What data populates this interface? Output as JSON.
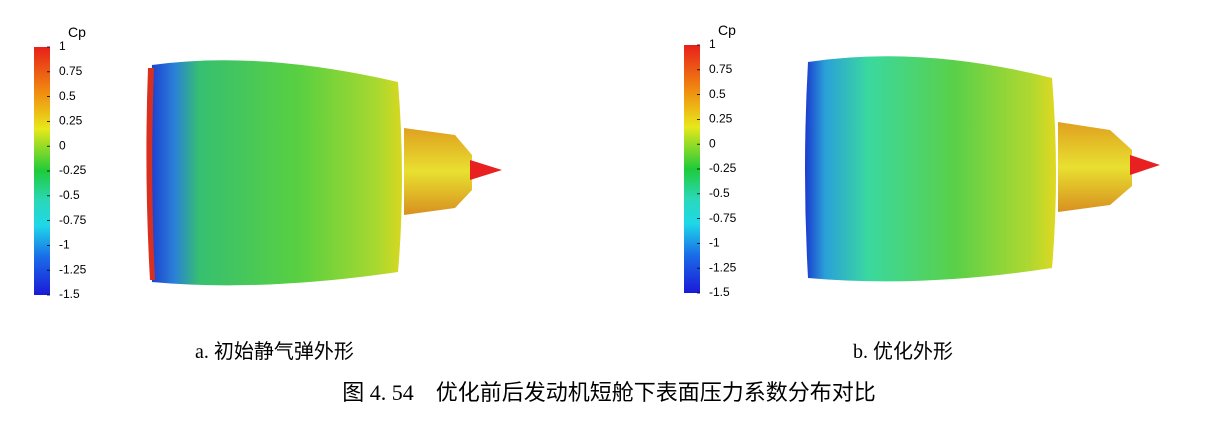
{
  "panels": [
    {
      "colorbar": {
        "title": "Cp",
        "ticks": [
          1,
          0.75,
          0.5,
          0.25,
          0,
          -0.25,
          -0.5,
          -0.75,
          -1,
          -1.25,
          -1.5
        ]
      },
      "caption": "a.  初始静气弹外形"
    },
    {
      "colorbar": {
        "title": "Cp",
        "ticks": [
          1,
          0.75,
          0.5,
          0.25,
          0,
          -0.25,
          -0.5,
          -0.75,
          -1,
          -1.25,
          -1.5
        ]
      },
      "caption": "b.  优化外形"
    }
  ],
  "caption": "图 4. 54　优化前后发动机短舱下表面压力系数分布对比"
}
